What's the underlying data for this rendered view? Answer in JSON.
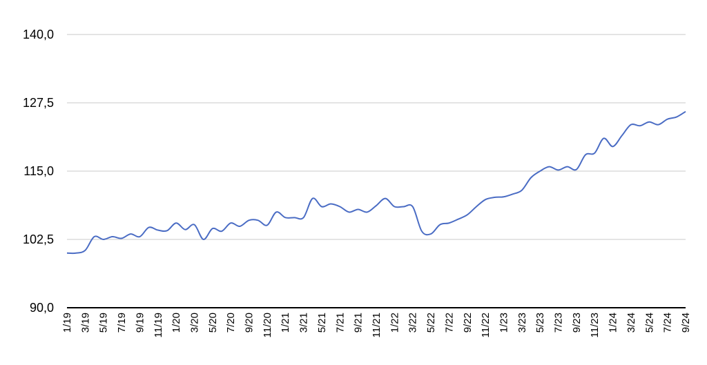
{
  "chart_data": {
    "type": "line",
    "title": "",
    "xlabel": "",
    "ylabel": "",
    "ylim": [
      90,
      140
    ],
    "y_ticks": [
      "90,0",
      "102,5",
      "115,0",
      "127,5",
      "140,0"
    ],
    "y_tick_values": [
      90,
      102.5,
      115,
      127.5,
      140
    ],
    "x_tick_labels": [
      "1/19",
      "3/19",
      "5/19",
      "7/19",
      "9/19",
      "11/19",
      "1/20",
      "3/20",
      "5/20",
      "7/20",
      "9/20",
      "11/20",
      "1/21",
      "3/21",
      "5/21",
      "7/21",
      "9/21",
      "11/21",
      "1/22",
      "3/22",
      "5/22",
      "7/22",
      "9/22",
      "11/22",
      "1/23",
      "3/23",
      "5/23",
      "7/23",
      "9/23",
      "11/23",
      "1/24",
      "3/24",
      "5/24",
      "7/24",
      "9/24"
    ],
    "grid": "horizontal",
    "line_color": "#4a6cc4",
    "series": [
      {
        "values": [
          100.0,
          100.0,
          100.5,
          103.0,
          102.5,
          103.0,
          102.7,
          103.5,
          103.0,
          104.7,
          104.2,
          104.1,
          105.5,
          104.3,
          105.2,
          102.5,
          104.5,
          104.0,
          105.5,
          104.9,
          106.0,
          106.0,
          105.1,
          107.5,
          106.5,
          106.5,
          106.5,
          110.0,
          108.5,
          109.0,
          108.5,
          107.5,
          108.0,
          107.5,
          108.7,
          110.0,
          108.5,
          108.5,
          108.5,
          104.0,
          103.5,
          105.2,
          105.5,
          106.2,
          107.0,
          108.5,
          109.8,
          110.2,
          110.3,
          110.8,
          111.5,
          113.8,
          115.0,
          115.8,
          115.2,
          115.8,
          115.3,
          118.0,
          118.3,
          121.0,
          119.5,
          121.5,
          123.5,
          123.3,
          124.0,
          123.5,
          124.5,
          124.9,
          125.9
        ]
      }
    ]
  }
}
